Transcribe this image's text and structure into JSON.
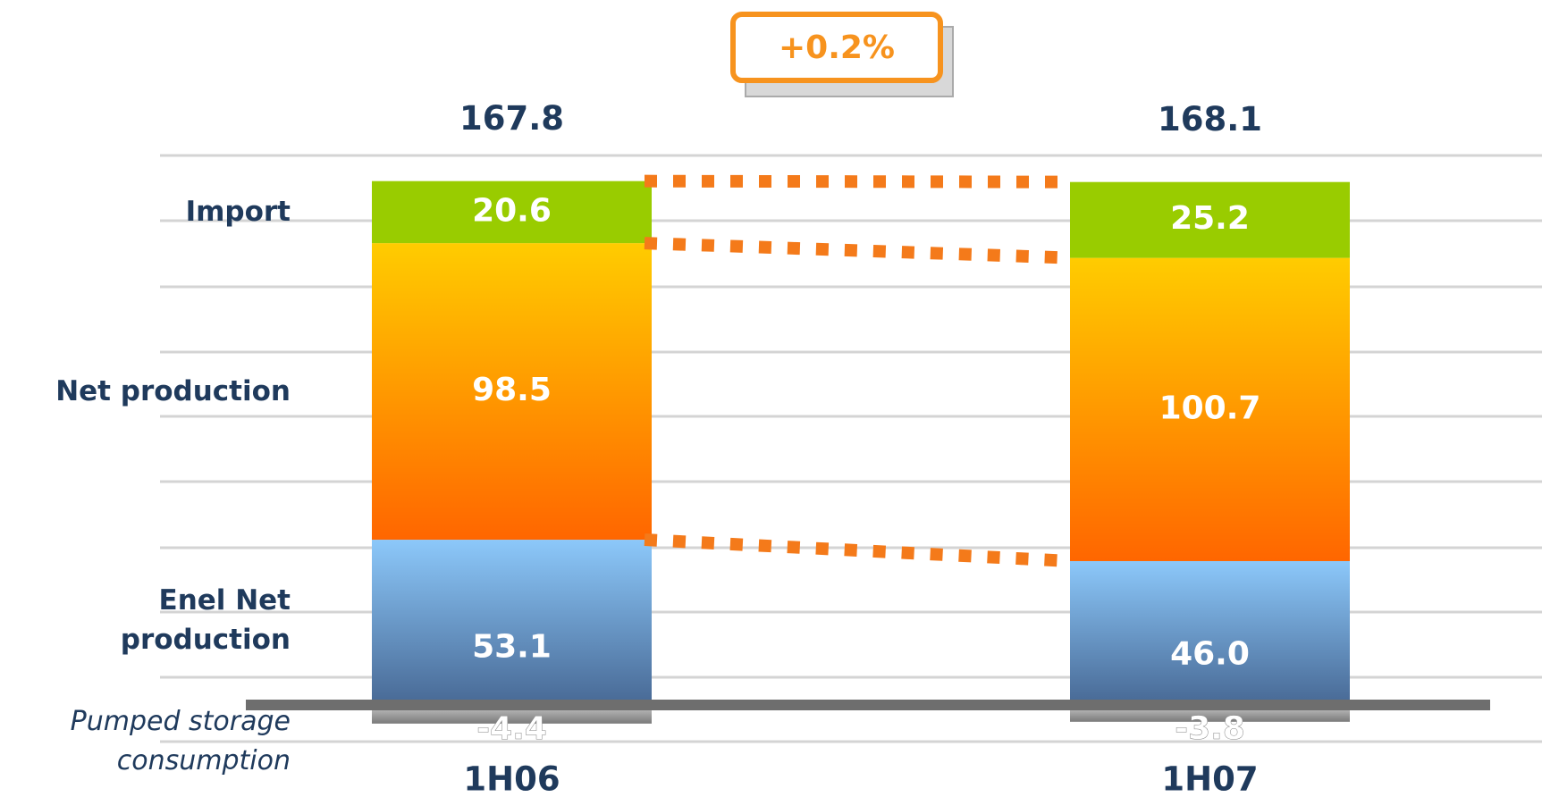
{
  "chart_data": {
    "type": "bar",
    "stacked": true,
    "categories": [
      "1H06",
      "1H07"
    ],
    "series": [
      {
        "name": "Pumped storage consumption",
        "color": "#b0b0b0",
        "values": [
          -4.4,
          -3.8
        ]
      },
      {
        "name": "Enel Net production",
        "color": "#8cc8fa",
        "values": [
          53.1,
          46.0
        ],
        "value_labels": [
          "53.1",
          "46.0"
        ]
      },
      {
        "name": "Net production",
        "color": "#ffcc00",
        "values": [
          98.5,
          100.7
        ]
      },
      {
        "name": "Import",
        "color": "#99cc00",
        "values": [
          20.6,
          25.2
        ]
      }
    ],
    "totals": [
      167.8,
      168.1
    ],
    "annotation": "+0.2%"
  }
}
